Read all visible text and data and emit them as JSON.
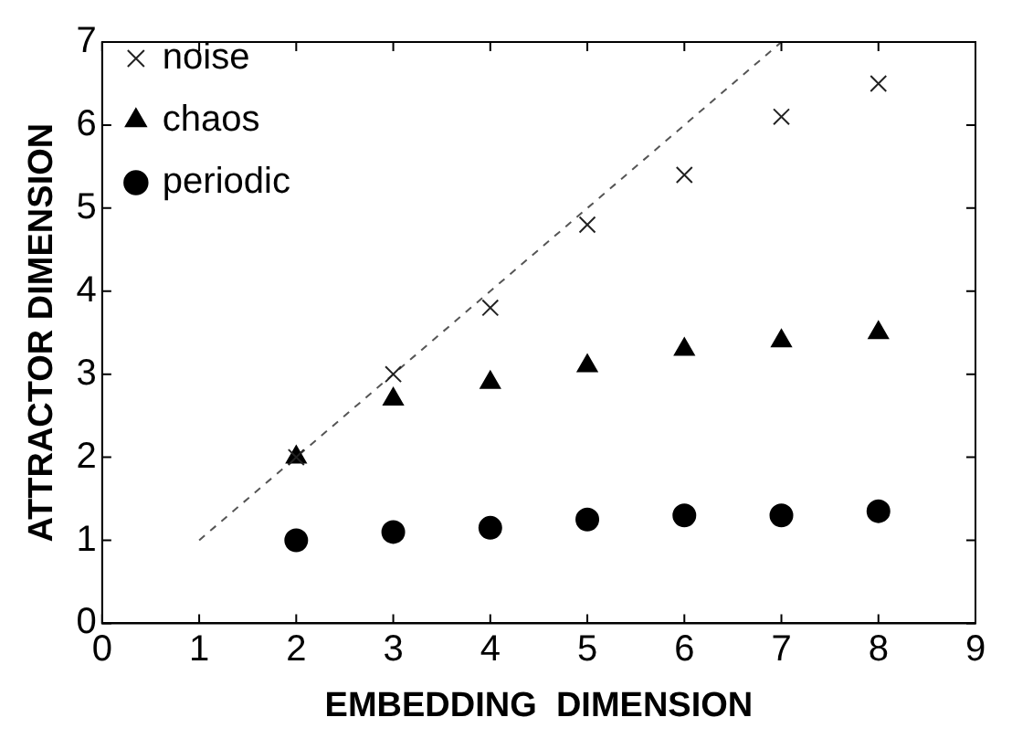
{
  "chart_data": {
    "type": "scatter",
    "xlabel": "EMBEDDING  DIMENSION",
    "ylabel": "ATTRACTOR DIMENSION",
    "xlim": [
      0,
      9
    ],
    "xticks": [
      0,
      1,
      2,
      3,
      4,
      5,
      6,
      7,
      8,
      9
    ],
    "ylim": [
      0,
      7
    ],
    "yticks": [
      0,
      1,
      2,
      3,
      4,
      5,
      6,
      7
    ],
    "grid": false,
    "legend": "top left",
    "series": [
      {
        "name": "noise",
        "color": "#222222",
        "marker": "cross",
        "x": [
          2,
          3,
          4,
          5,
          6,
          7,
          8
        ],
        "values": [
          2.0,
          3.0,
          3.8,
          4.8,
          5.4,
          6.1,
          6.5
        ]
      },
      {
        "name": "chaos",
        "color": "#000000",
        "marker": "triangle",
        "x": [
          2,
          3,
          4,
          5,
          6,
          7,
          8
        ],
        "values": [
          2.0,
          2.7,
          2.9,
          3.1,
          3.3,
          3.4,
          3.5
        ]
      },
      {
        "name": "periodic",
        "color": "#000000",
        "marker": "circle",
        "x": [
          2,
          3,
          4,
          5,
          6,
          7,
          8
        ],
        "values": [
          1.0,
          1.1,
          1.15,
          1.25,
          1.3,
          1.3,
          1.35
        ]
      },
      {
        "type": "line",
        "color": "#555555",
        "line_style": "dashed",
        "marker": "none",
        "x": [
          1,
          7
        ],
        "values": [
          1,
          7
        ]
      }
    ]
  }
}
